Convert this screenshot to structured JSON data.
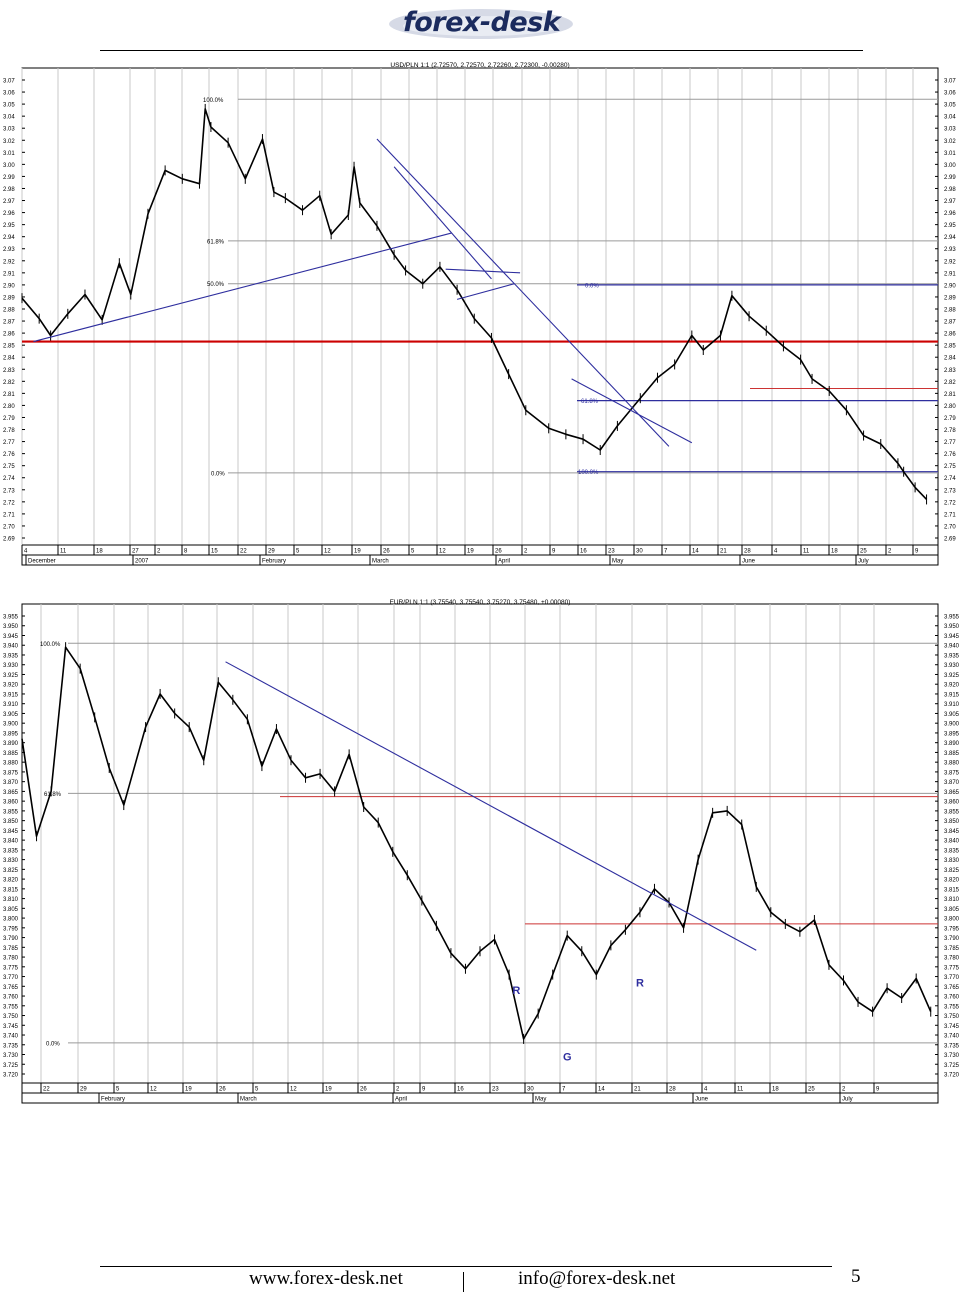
{
  "header": {
    "logo_text": "forex-desk"
  },
  "footer": {
    "website": "www.forex-desk.net",
    "email": "info@forex-desk.net",
    "page_number": "5"
  },
  "chart_data": [
    {
      "type": "line",
      "title": "USD/PLN 1:1 (2.72570, 2.72570, 2.72260, 2.72300, -0.00280)",
      "ylim": [
        2.69,
        3.07
      ],
      "y_ticks": [
        "3.07",
        "3.06",
        "3.05",
        "3.04",
        "3.03",
        "3.02",
        "3.01",
        "3.00",
        "2.99",
        "2.98",
        "2.97",
        "2.96",
        "2.95",
        "2.94",
        "2.93",
        "2.92",
        "2.91",
        "2.90",
        "2.89",
        "2.88",
        "2.87",
        "2.86",
        "2.85",
        "2.84",
        "2.83",
        "2.82",
        "2.81",
        "2.80",
        "2.79",
        "2.78",
        "2.77",
        "2.76",
        "2.75",
        "2.74",
        "2.73",
        "2.72",
        "2.71",
        "2.70",
        "2.69"
      ],
      "x_day_labels": [
        "4",
        "11",
        "18",
        "27",
        "2",
        "8",
        "15",
        "22",
        "29",
        "5",
        "12",
        "19",
        "26",
        "5",
        "12",
        "19",
        "26",
        "2",
        "9",
        "16",
        "23",
        "30",
        "7",
        "14",
        "21",
        "28",
        "4",
        "11",
        "18",
        "25",
        "2",
        "9"
      ],
      "x_month_labels": [
        "December",
        "2007",
        "February",
        "March",
        "April",
        "May",
        "June",
        "July"
      ],
      "series": [
        {
          "x": [
            0,
            3,
            5,
            8,
            11,
            14,
            17,
            19,
            22,
            25,
            28,
            31,
            32,
            33,
            36,
            39,
            42,
            44,
            46,
            49,
            52,
            54,
            57,
            58,
            59,
            62,
            65,
            67,
            70,
            73,
            76,
            79,
            82,
            85,
            88,
            92,
            95,
            98,
            101,
            104,
            108,
            111,
            114,
            117,
            119,
            122,
            124,
            127,
            130,
            133,
            136,
            138,
            141,
            144,
            147,
            150,
            153,
            154,
            156,
            158
          ],
          "y": [
            2.889,
            2.872,
            2.858,
            2.876,
            2.892,
            2.871,
            2.918,
            2.892,
            2.959,
            2.995,
            2.988,
            2.984,
            3.046,
            3.031,
            3.018,
            2.988,
            3.021,
            2.977,
            2.972,
            2.962,
            2.974,
            2.942,
            2.958,
            2.998,
            2.968,
            2.949,
            2.925,
            2.912,
            2.901,
            2.915,
            2.896,
            2.872,
            2.856,
            2.826,
            2.796,
            2.781,
            2.776,
            2.772,
            2.763,
            2.783,
            2.806,
            2.823,
            2.834,
            2.858,
            2.846,
            2.858,
            2.891,
            2.874,
            2.862,
            2.849,
            2.838,
            2.822,
            2.812,
            2.796,
            2.775,
            2.768,
            2.752,
            2.745,
            2.732,
            2.722
          ]
        }
      ],
      "fib_levels": [
        {
          "label": "100.0%",
          "value": 3.054
        },
        {
          "label": "61.8%",
          "value": 2.9365
        },
        {
          "label": "50.0%",
          "value": 2.901
        },
        {
          "label": "0.0%",
          "value": 2.744
        },
        {
          "label": "0.0%",
          "value": 2.9
        },
        {
          "label": "61.8%",
          "value": 2.804
        },
        {
          "label": "100.0%",
          "value": 2.745
        }
      ],
      "horizontal_lines": [
        {
          "value": 2.853,
          "color": "#cc0000"
        },
        {
          "value": 2.814,
          "color": "#cc3333"
        }
      ],
      "trend_lines": [
        {
          "from": [
            2,
            2.853
          ],
          "to": [
            75,
            2.943
          ],
          "color": "#2e2e9e"
        },
        {
          "from": [
            62,
            3.021
          ],
          "to": [
            113,
            2.766
          ],
          "color": "#2e2e9e"
        },
        {
          "from": [
            65,
            2.998
          ],
          "to": [
            82,
            2.905
          ],
          "color": "#2e2e9e"
        },
        {
          "from": [
            74,
            2.913
          ],
          "to": [
            87,
            2.91
          ],
          "color": "#2e2e9e"
        },
        {
          "from": [
            76,
            2.888
          ],
          "to": [
            86,
            2.901
          ],
          "color": "#2e2e9e"
        },
        {
          "from": [
            96,
            2.822
          ],
          "to": [
            117,
            2.769
          ],
          "color": "#2e2e9e"
        }
      ]
    },
    {
      "type": "line",
      "title": "EUR/PLN 1:1 (3.75540, 3.75540, 3.75270, 3.75480, +0.00080)",
      "ylim": [
        3.72,
        3.955
      ],
      "y_ticks": [
        "3.955",
        "3.950",
        "3.945",
        "3.940",
        "3.935",
        "3.930",
        "3.925",
        "3.920",
        "3.915",
        "3.910",
        "3.905",
        "3.900",
        "3.895",
        "3.890",
        "3.885",
        "3.880",
        "3.875",
        "3.870",
        "3.865",
        "3.860",
        "3.855",
        "3.850",
        "3.845",
        "3.840",
        "3.835",
        "3.830",
        "3.825",
        "3.820",
        "3.815",
        "3.810",
        "3.805",
        "3.800",
        "3.795",
        "3.790",
        "3.785",
        "3.780",
        "3.775",
        "3.770",
        "3.765",
        "3.760",
        "3.755",
        "3.750",
        "3.745",
        "3.740",
        "3.735",
        "3.730",
        "3.725",
        "3.720"
      ],
      "x_day_labels": [
        "22",
        "29",
        "5",
        "12",
        "19",
        "26",
        "5",
        "12",
        "19",
        "26",
        "2",
        "9",
        "16",
        "23",
        "30",
        "7",
        "14",
        "21",
        "28",
        "4",
        "11",
        "18",
        "25",
        "2",
        "9"
      ],
      "x_month_labels": [
        "February",
        "March",
        "April",
        "May",
        "June",
        "July"
      ],
      "series": [
        {
          "x": [
            0,
            2,
            4,
            6,
            8,
            10,
            12,
            14,
            17,
            19,
            21,
            23,
            25,
            27,
            29,
            31,
            33,
            35,
            37,
            39,
            41,
            43,
            45,
            47,
            49,
            51,
            53,
            55,
            57,
            59,
            61,
            63,
            65,
            67,
            69,
            71,
            73,
            75,
            77,
            79,
            81,
            83,
            85,
            87,
            89,
            91,
            93,
            95,
            97,
            99,
            101,
            103,
            105,
            107,
            109,
            111,
            113,
            115,
            117,
            119,
            121,
            123,
            125
          ],
          "y": [
            3.892,
            3.842,
            3.865,
            3.939,
            3.928,
            3.903,
            3.877,
            3.858,
            3.898,
            3.915,
            3.905,
            3.898,
            3.881,
            3.921,
            3.912,
            3.902,
            3.878,
            3.897,
            3.881,
            3.872,
            3.874,
            3.865,
            3.884,
            3.857,
            3.849,
            3.834,
            3.822,
            3.809,
            3.796,
            3.782,
            3.774,
            3.783,
            3.789,
            3.771,
            3.738,
            3.751,
            3.771,
            3.791,
            3.783,
            3.771,
            3.786,
            3.794,
            3.803,
            3.815,
            3.808,
            3.795,
            3.83,
            3.854,
            3.855,
            3.848,
            3.816,
            3.803,
            3.797,
            3.793,
            3.799,
            3.776,
            3.768,
            3.757,
            3.752,
            3.764,
            3.759,
            3.769,
            3.752
          ]
        }
      ],
      "fib_levels": [
        {
          "label": "100.0%",
          "value": 3.941
        },
        {
          "label": "61.8%",
          "value": 3.864
        },
        {
          "label": "0.0%",
          "value": 3.736
        }
      ],
      "horizontal_lines": [
        {
          "value": 3.8623,
          "color": "#cc3333"
        },
        {
          "value": 3.797,
          "color": "#cc3333"
        }
      ],
      "trend_lines": [
        {
          "from": [
            28,
            3.9315
          ],
          "to": [
            101,
            3.7835
          ],
          "color": "#2e2e9e"
        }
      ],
      "annotations": [
        {
          "text": "R",
          "x": 68,
          "y": 3.761
        },
        {
          "text": "R",
          "x": 85,
          "y": 3.765
        },
        {
          "text": "G",
          "x": 75,
          "y": 3.727
        }
      ]
    }
  ]
}
